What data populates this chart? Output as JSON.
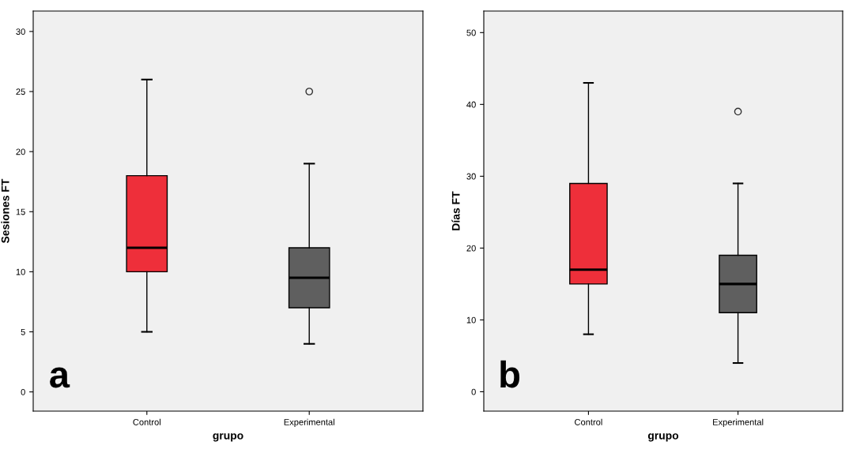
{
  "chart_data": [
    {
      "type": "box",
      "xlabel": "grupo",
      "ylabel": "Sesiones FT",
      "categories": [
        "Control",
        "Experimental"
      ],
      "colors": [
        "#ee2f3a",
        "#5f5f5f"
      ],
      "boxes": [
        {
          "low": 5,
          "q1": 10,
          "median": 12,
          "q3": 18,
          "high": 26
        },
        {
          "low": 4,
          "q1": 7,
          "median": 9.5,
          "q3": 12,
          "high": 19,
          "outliers": [
            25
          ]
        }
      ],
      "ylim": [
        -1.6,
        31.7
      ],
      "yticks": [
        0,
        5,
        10,
        15,
        20,
        25,
        30
      ],
      "annotations": [
        "a"
      ]
    },
    {
      "type": "box",
      "xlabel": "grupo",
      "ylabel": "Días FT",
      "categories": [
        "Control",
        "Experimental"
      ],
      "colors": [
        "#ee2f3a",
        "#5f5f5f"
      ],
      "boxes": [
        {
          "low": 8,
          "q1": 15,
          "median": 17,
          "q3": 29,
          "high": 43
        },
        {
          "low": 4,
          "q1": 11,
          "median": 15,
          "q3": 19,
          "high": 29,
          "outliers": [
            39
          ]
        }
      ],
      "ylim": [
        -2.7,
        53
      ],
      "yticks": [
        0,
        10,
        20,
        30,
        40,
        50
      ],
      "annotations": [
        "b"
      ]
    }
  ]
}
